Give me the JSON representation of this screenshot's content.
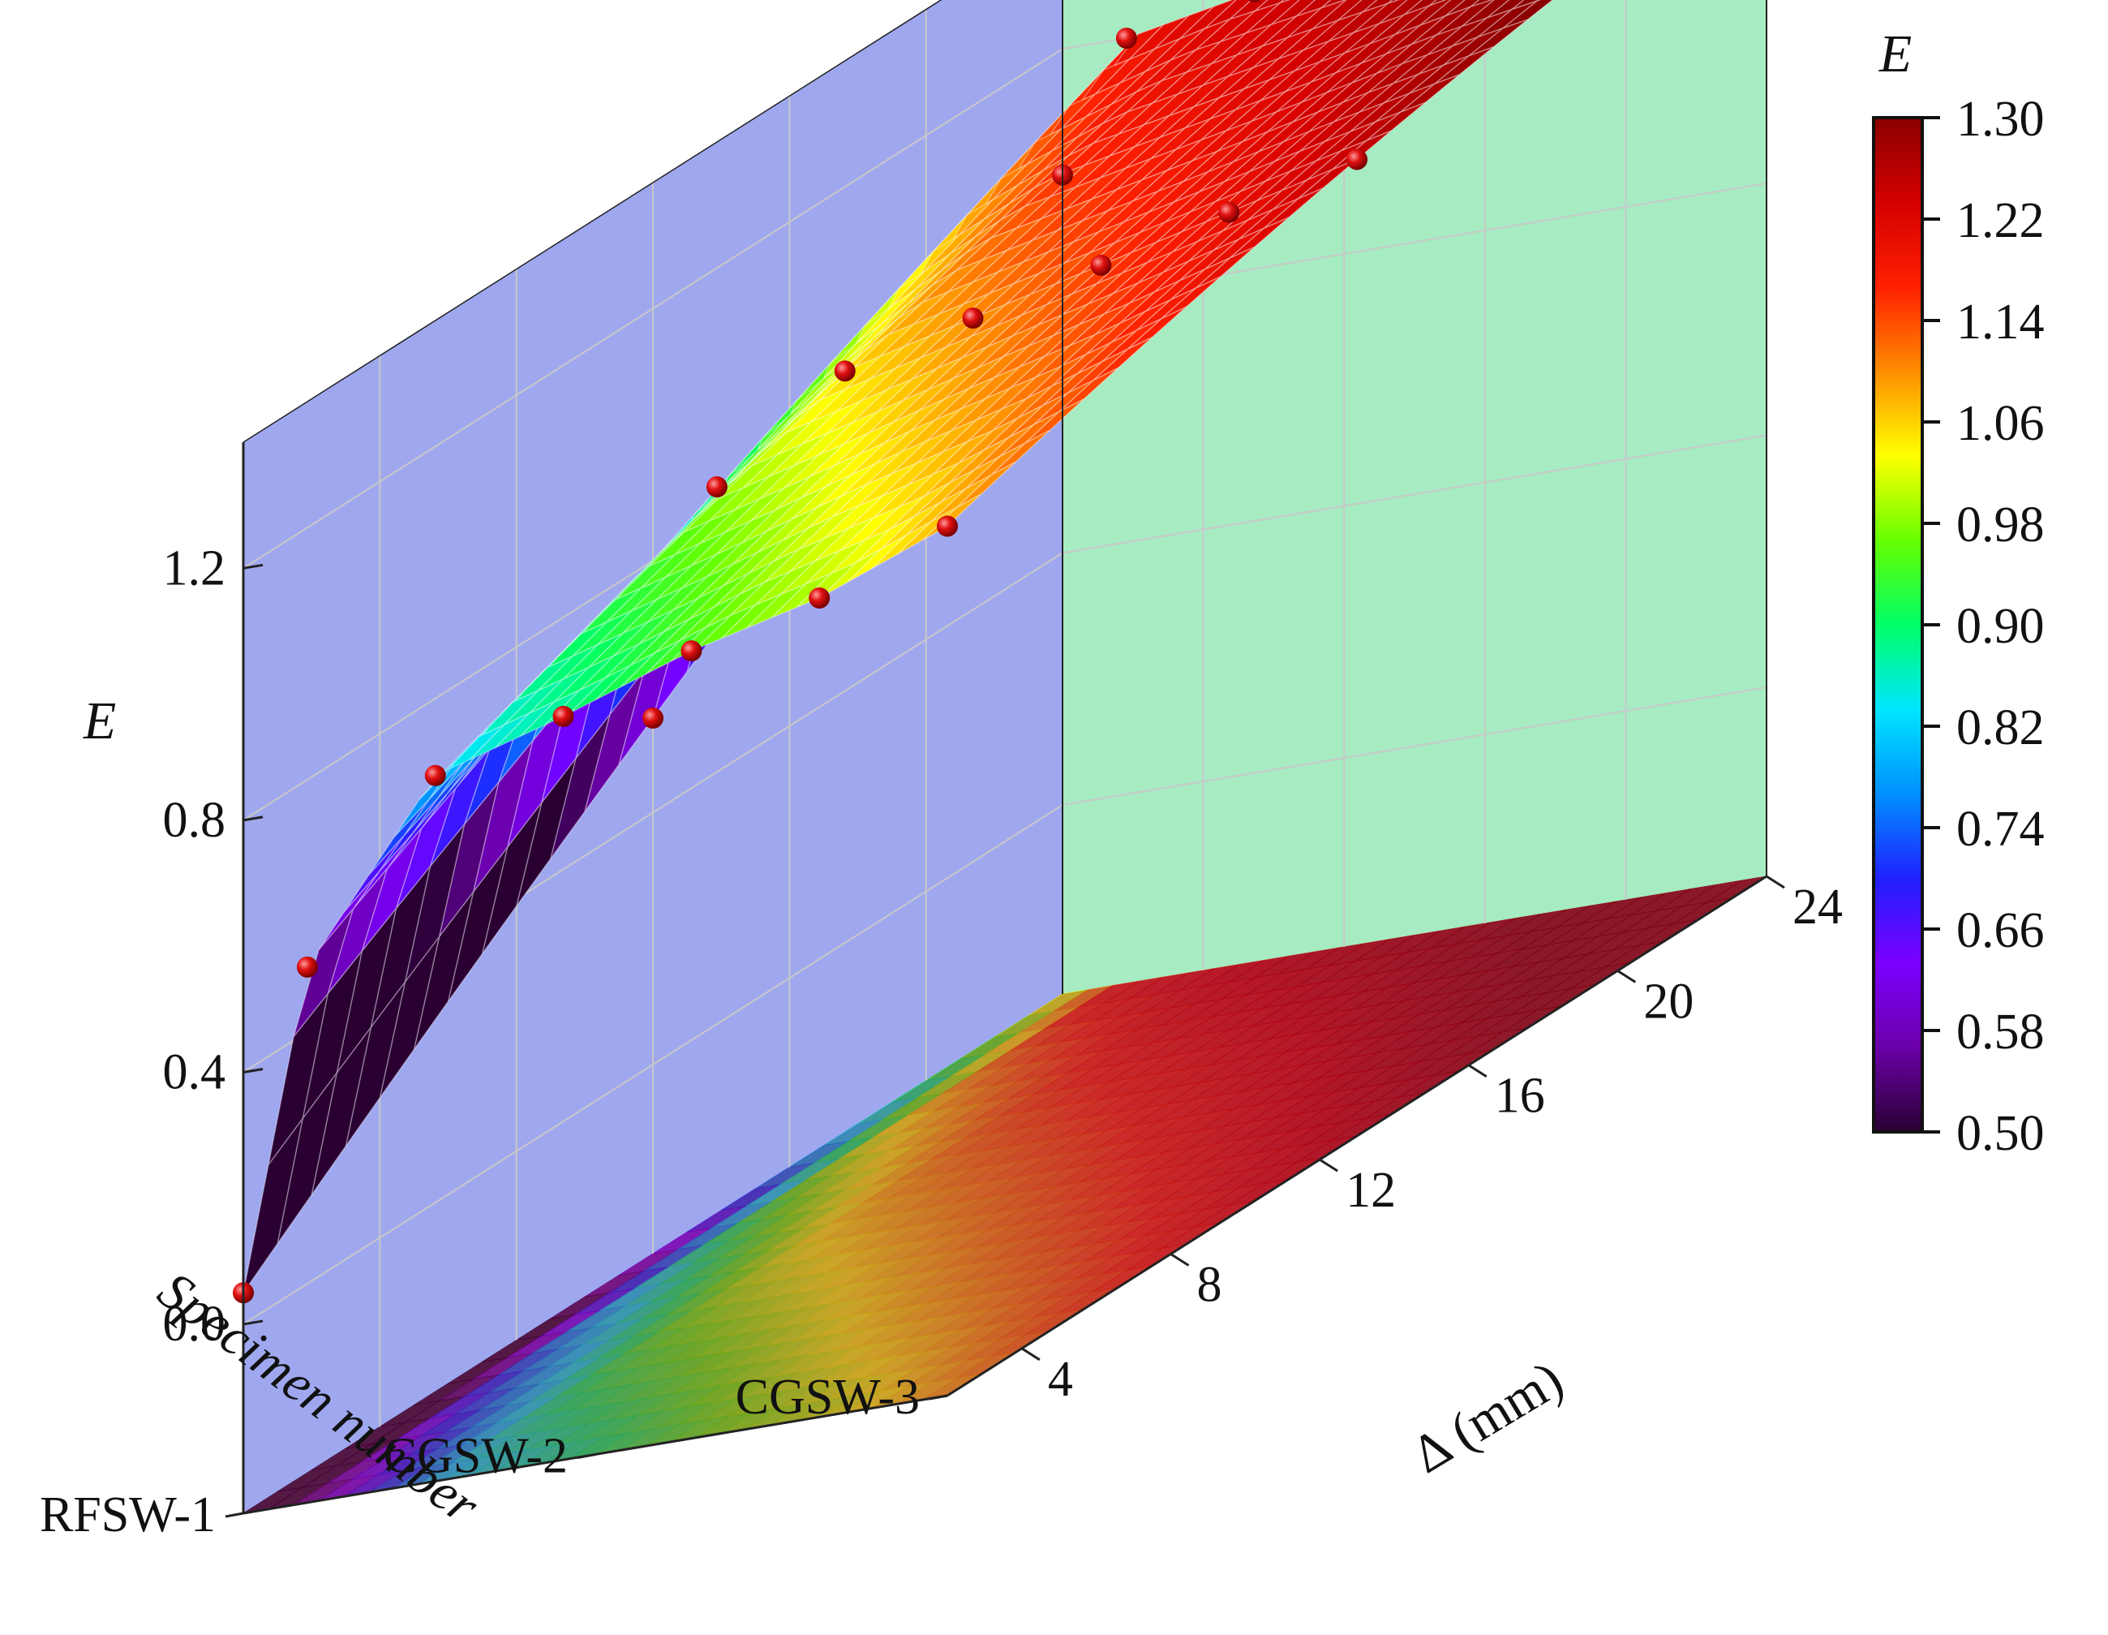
{
  "chart_data": {
    "type": "surface3d",
    "zlabel": "E",
    "xlabel": "Δ (mm)",
    "ylabel": "Specimen number",
    "colorbar_label": "E",
    "x_ticks": [
      "4",
      "8",
      "12",
      "16",
      "20",
      "24"
    ],
    "y_ticks": [
      "RFSW-1",
      "CGSW-2",
      "CGSW-3"
    ],
    "z_ticks": [
      "0.0",
      "0.4",
      "0.8",
      "1.2"
    ],
    "colorbar_ticks": [
      "0.50",
      "0.58",
      "0.66",
      "0.74",
      "0.82",
      "0.90",
      "0.98",
      "1.06",
      "1.14",
      "1.22",
      "1.30"
    ],
    "xlim": [
      2,
      24
    ],
    "zlim": [
      -0.3,
      1.4
    ],
    "color_range": [
      0.5,
      1.3
    ],
    "colormap": [
      "#2a0033",
      "#6a00a8",
      "#7b00ff",
      "#2020ff",
      "#0090ff",
      "#00e5ff",
      "#00ff66",
      "#66ff00",
      "#ffff00",
      "#ff8c00",
      "#ff2000",
      "#d40000",
      "#8b0000",
      "#ffffff"
    ],
    "x": [
      2,
      4,
      8,
      12,
      16,
      20,
      24
    ],
    "series": [
      {
        "specimen": "RFSW-1",
        "values": [
          1.0,
          1.2,
          1.24,
          1.27,
          1.3,
          1.33,
          1.35
        ]
      },
      {
        "specimen": "CGSW-2",
        "values": [
          0.55,
          0.9,
          1.05,
          1.1,
          1.15,
          1.2,
          1.25
        ]
      },
      {
        "specimen": "CGSW-3",
        "values": [
          0.05,
          0.55,
          0.82,
          0.88,
          0.95,
          1.0,
          1.08
        ]
      }
    ],
    "colors": {
      "back_wall": "#9fa8ef",
      "side_wall": "#a6ebc2",
      "marker": "#e01010",
      "grid": "#c8c8c8"
    }
  }
}
